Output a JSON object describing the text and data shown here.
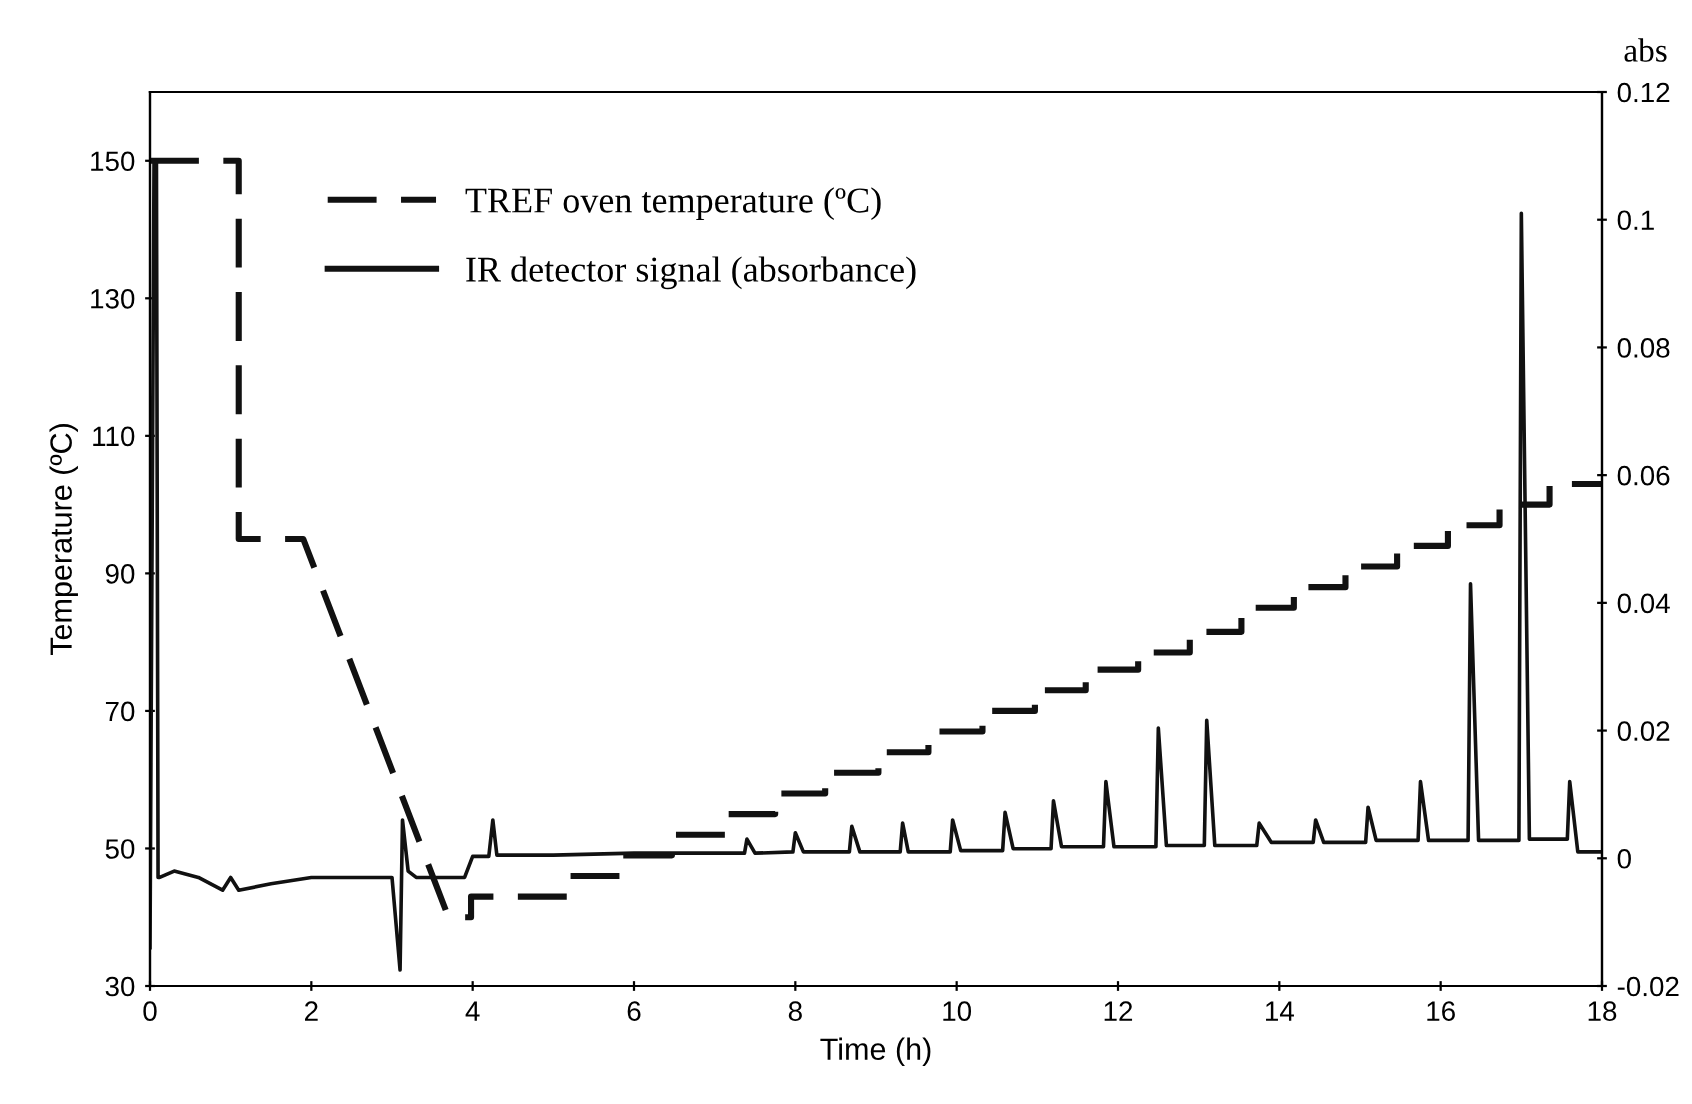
{
  "chart_data": {
    "type": "line",
    "xlabel": "Time (h)",
    "ylabel": "Temperature (ºC)",
    "y2label": "abs",
    "xlim": [
      0,
      18
    ],
    "xticks": [
      0,
      2,
      4,
      6,
      8,
      10,
      12,
      14,
      16,
      18
    ],
    "ylim": [
      30,
      160
    ],
    "yticks": [
      30,
      50,
      70,
      90,
      110,
      130,
      150
    ],
    "y2lim": [
      -0.02,
      0.12
    ],
    "y2ticks": [
      -0.02,
      0,
      0.02,
      0.04,
      0.06,
      0.08,
      0.1,
      0.12
    ],
    "grid": false,
    "legend": "top left",
    "series": [
      {
        "name": "TREF oven temperature (ºC)",
        "color": "#111111",
        "line_style": "dashed",
        "x": [
          0,
          1.1,
          1.1,
          1.9,
          3.7,
          3.98,
          3.98,
          5.17,
          5.17,
          5.85,
          5.85,
          6.47,
          6.47,
          7.13,
          7.13,
          7.75,
          7.75,
          8.37,
          8.37,
          9.03,
          9.03,
          9.65,
          9.65,
          10.32,
          10.32,
          10.97,
          10.97,
          11.6,
          11.6,
          12.25,
          12.25,
          12.89,
          12.89,
          13.53,
          13.53,
          14.18,
          14.18,
          14.82,
          14.82,
          15.46,
          15.46,
          16.09,
          16.09,
          16.73,
          16.73,
          17.35,
          17.35,
          18
        ],
        "values": [
          150,
          150,
          95,
          95,
          40,
          40,
          43,
          43,
          46,
          46,
          49,
          49,
          52,
          52,
          55,
          55,
          58,
          58,
          61,
          61,
          64,
          64,
          67,
          67,
          70,
          70,
          73,
          73,
          76,
          76,
          78.5,
          78.5,
          81.5,
          81.5,
          85,
          85,
          88,
          88,
          91,
          91,
          94,
          94,
          97,
          97,
          100,
          100,
          103,
          103
        ]
      },
      {
        "name": "IR detector signal (absorbance)",
        "color": "#111111",
        "line_style": "solid",
        "axis": "y2",
        "x": [
          0,
          0.05,
          0.08,
          0.1,
          0.12,
          0.3,
          0.6,
          0.9,
          1.0,
          1.1,
          1.5,
          2.0,
          2.5,
          3.0,
          3.1,
          3.13,
          3.2,
          3.3,
          3.5,
          3.9,
          4.0,
          4.2,
          4.25,
          4.3,
          5.0,
          6.0,
          7.0,
          7.37,
          7.4,
          7.5,
          7.97,
          8.0,
          8.1,
          8.67,
          8.7,
          8.8,
          9.3,
          9.33,
          9.4,
          9.92,
          9.95,
          10.05,
          10.57,
          10.6,
          10.7,
          11.17,
          11.2,
          11.3,
          11.82,
          11.85,
          11.95,
          12.47,
          12.5,
          12.6,
          13.07,
          13.1,
          13.2,
          13.72,
          13.75,
          13.9,
          14.42,
          14.45,
          14.55,
          15.07,
          15.1,
          15.2,
          15.72,
          15.75,
          15.85,
          16.34,
          16.37,
          16.47,
          16.97,
          17.0,
          17.1,
          17.57,
          17.6,
          17.7,
          18
        ],
        "values": [
          -0.014,
          0.109,
          0.109,
          -0.003,
          -0.003,
          -0.002,
          -0.003,
          -0.005,
          -0.003,
          -0.005,
          -0.004,
          -0.003,
          -0.003,
          -0.003,
          -0.0175,
          0.006,
          -0.002,
          -0.003,
          -0.003,
          -0.003,
          0.0003,
          0.0003,
          0.006,
          0.0005,
          0.0005,
          0.0008,
          0.0008,
          0.0008,
          0.003,
          0.0008,
          0.001,
          0.004,
          0.001,
          0.001,
          0.005,
          0.001,
          0.001,
          0.0055,
          0.001,
          0.001,
          0.006,
          0.0012,
          0.0012,
          0.0072,
          0.0015,
          0.0015,
          0.009,
          0.0018,
          0.0018,
          0.012,
          0.0018,
          0.0018,
          0.0204,
          0.002,
          0.002,
          0.0216,
          0.002,
          0.002,
          0.0055,
          0.0025,
          0.0025,
          0.006,
          0.0025,
          0.0025,
          0.008,
          0.0028,
          0.0028,
          0.012,
          0.0028,
          0.0028,
          0.043,
          0.0028,
          0.0028,
          0.101,
          0.003,
          0.003,
          0.012,
          0.001,
          0.001
        ]
      }
    ]
  }
}
